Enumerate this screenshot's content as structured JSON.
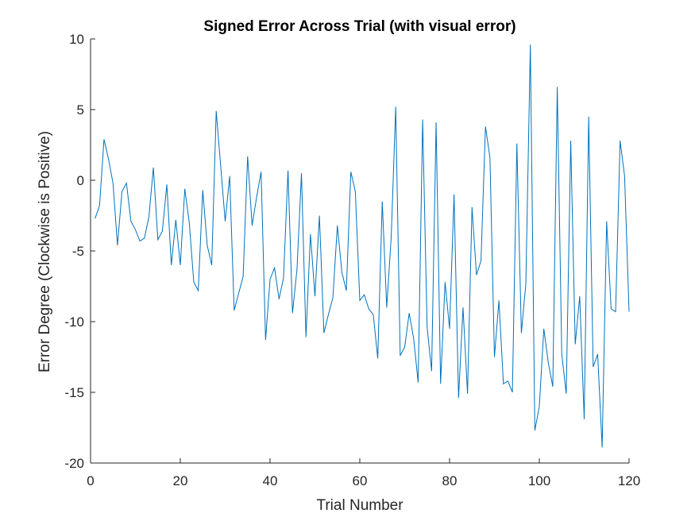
{
  "chart_data": {
    "type": "line",
    "title": "Signed Error Across Trial (with visual error)",
    "xlabel": "Trial Number",
    "ylabel": "Error Degree (Clockwise is Positive)",
    "xlim": [
      0,
      120
    ],
    "ylim": [
      -20,
      10
    ],
    "xticks": [
      0,
      20,
      40,
      60,
      80,
      100,
      120
    ],
    "yticks": [
      -20,
      -15,
      -10,
      -5,
      0,
      5,
      10
    ],
    "grid": false,
    "line_color": "#0072BD",
    "series": [
      {
        "name": "Signed Error",
        "x": [
          1,
          2,
          3,
          4,
          5,
          6,
          7,
          8,
          9,
          10,
          11,
          12,
          13,
          14,
          15,
          16,
          17,
          18,
          19,
          20,
          21,
          22,
          23,
          24,
          25,
          26,
          27,
          28,
          29,
          30,
          31,
          32,
          33,
          34,
          35,
          36,
          37,
          38,
          39,
          40,
          41,
          42,
          43,
          44,
          45,
          46,
          47,
          48,
          49,
          50,
          51,
          52,
          53,
          54,
          55,
          56,
          57,
          58,
          59,
          60,
          61,
          62,
          63,
          64,
          65,
          66,
          67,
          68,
          69,
          70,
          71,
          72,
          73,
          74,
          75,
          76,
          77,
          78,
          79,
          80,
          81,
          82,
          83,
          84,
          85,
          86,
          87,
          88,
          89,
          90,
          91,
          92,
          93,
          94,
          95,
          96,
          97,
          98,
          99,
          100,
          101,
          102,
          103,
          104,
          105,
          106,
          107,
          108,
          109,
          110,
          111,
          112,
          113,
          114,
          115,
          116,
          117,
          118,
          119,
          120
        ],
        "values": [
          -2.7,
          -1.8,
          2.9,
          1.5,
          -0.2,
          -4.6,
          -0.8,
          -0.2,
          -2.9,
          -3.5,
          -4.3,
          -4.1,
          -2.6,
          0.9,
          -4.2,
          -3.6,
          -0.3,
          -6.0,
          -2.8,
          -6.0,
          -0.6,
          -3.0,
          -7.2,
          -7.8,
          -0.7,
          -4.6,
          -6.0,
          4.9,
          1.0,
          -2.9,
          0.3,
          -9.2,
          -8.0,
          -6.8,
          1.7,
          -3.2,
          -1.2,
          0.6,
          -11.3,
          -7.0,
          -6.2,
          -8.4,
          -6.9,
          0.7,
          -9.4,
          -6.3,
          0.5,
          -11.1,
          -3.8,
          -8.2,
          -2.5,
          -10.8,
          -9.5,
          -8.3,
          -3.2,
          -6.5,
          -7.8,
          0.6,
          -0.8,
          -8.5,
          -8.1,
          -9.1,
          -9.5,
          -12.6,
          -1.5,
          -9.0,
          -4.0,
          5.2,
          -12.4,
          -11.8,
          -9.4,
          -11.2,
          -14.3,
          4.3,
          -10.4,
          -13.5,
          4.1,
          -14.4,
          -7.2,
          -10.5,
          -1.0,
          -15.4,
          -9.0,
          -15.1,
          -1.9,
          -6.7,
          -5.7,
          3.8,
          1.6,
          -12.5,
          -8.5,
          -14.4,
          -14.2,
          -15.0,
          2.6,
          -10.8,
          -7.3,
          9.6,
          -17.7,
          -16.0,
          -10.5,
          -12.9,
          -14.6,
          6.6,
          -12.3,
          -15.1,
          2.8,
          -11.6,
          -8.2,
          -16.9,
          4.5,
          -13.2,
          -12.3,
          -18.9,
          -2.9,
          -9.1,
          -9.3,
          2.8,
          0.3,
          -9.3
        ]
      }
    ]
  }
}
